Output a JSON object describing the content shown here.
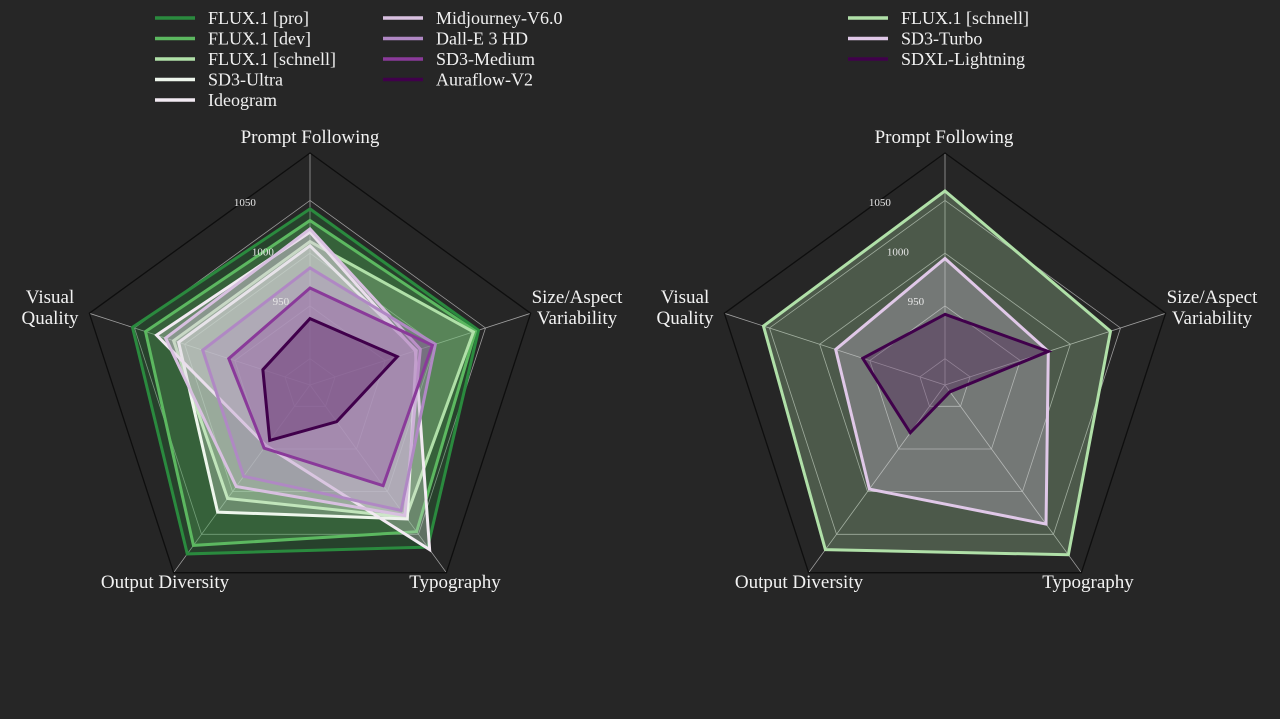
{
  "chart_data": [
    {
      "type": "radar",
      "axes": [
        "Prompt Following",
        "Size/Aspect Variability",
        "Typography",
        "Output Diversity",
        "Visual Quality"
      ],
      "axis_label_lines": [
        [
          "Prompt Following"
        ],
        [
          "Size/Aspect",
          "Variability"
        ],
        [
          "Typography"
        ],
        [
          "Output Diversity"
        ],
        [
          "Visual",
          "Quality"
        ]
      ],
      "range": [
        875,
        1095
      ],
      "ticks": [
        "950",
        "1000",
        "1050"
      ],
      "tick_values": [
        950,
        1000,
        1050
      ],
      "grid_values": [
        900,
        950,
        1000,
        1050
      ],
      "legend_position": "top",
      "series": [
        {
          "name": "FLUX.1 [pro]",
          "color": "#2a8a3e",
          "values": [
            1042,
            1043,
            1065,
            1073,
            1052
          ]
        },
        {
          "name": "FLUX.1 [dev]",
          "color": "#5cb860",
          "values": [
            1031,
            1040,
            1047,
            1063,
            1039
          ]
        },
        {
          "name": "FLUX.1 [schnell]",
          "color": "#b0e0a8",
          "values": [
            1011,
            1038,
            1030,
            1008,
            1011
          ]
        },
        {
          "name": "SD3-Ultra",
          "color": "#eef6ec",
          "values": [
            1007,
            981,
            1032,
            1024,
            1006
          ]
        },
        {
          "name": "Ideogram",
          "color": "#f2eaf2",
          "values": [
            1020,
            980,
            1068,
            946,
            1028
          ]
        },
        {
          "name": "Midjourney-V6.0",
          "color": "#d8c0e0",
          "values": [
            1023,
            985,
            1028,
            994,
            1019
          ]
        },
        {
          "name": "Dall-E 3 HD",
          "color": "#b088c4",
          "values": [
            986,
            1000,
            1022,
            982,
            982
          ]
        },
        {
          "name": "SD3-Medium",
          "color": "#8a3a9a",
          "values": [
            967,
            997,
            993,
            949,
            956
          ]
        },
        {
          "name": "Auraflow-V2",
          "color": "#40004b",
          "values": [
            938,
            962,
            918,
            940,
            922
          ]
        }
      ]
    },
    {
      "type": "radar",
      "axes": [
        "Prompt Following",
        "Size/Aspect Variability",
        "Typography",
        "Output Diversity",
        "Visual Quality"
      ],
      "axis_label_lines": [
        [
          "Prompt Following"
        ],
        [
          "Size/Aspect",
          "Variability"
        ],
        [
          "Typography"
        ],
        [
          "Output Diversity"
        ],
        [
          "Visual",
          "Quality"
        ]
      ],
      "range": [
        875,
        1095
      ],
      "ticks": [
        "950",
        "1000",
        "1050"
      ],
      "tick_values": [
        950,
        1000,
        1050
      ],
      "grid_values": [
        900,
        950,
        1000,
        1050
      ],
      "legend_position": "top",
      "series": [
        {
          "name": "FLUX.1 [schnell]",
          "color": "#b0e0a8",
          "values": [
            1059,
            1040,
            1074,
            1068,
            1056
          ]
        },
        {
          "name": "SD3-Turbo",
          "color": "#e0c8e8",
          "values": [
            995,
            978,
            1038,
            997,
            984
          ]
        },
        {
          "name": "SDXL-Lightning",
          "color": "#40004b",
          "values": [
            942,
            978,
            883,
            931,
            957
          ]
        }
      ]
    }
  ]
}
